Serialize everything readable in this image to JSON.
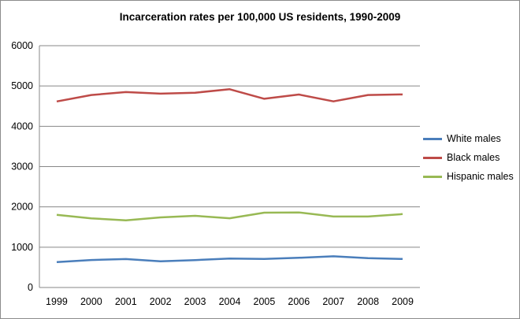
{
  "chart_data": {
    "type": "line",
    "title": "Incarceration rates per 100,000 US residents, 1990-2009",
    "xlabel": "",
    "ylabel": "",
    "x": [
      "1999",
      "2000",
      "2001",
      "2002",
      "2003",
      "2004",
      "2005",
      "2006",
      "2007",
      "2008",
      "2009"
    ],
    "ylim": [
      0,
      6000
    ],
    "yticks": [
      0,
      1000,
      2000,
      3000,
      4000,
      5000,
      6000
    ],
    "grid": true,
    "legend_position": "right",
    "series": [
      {
        "name": "White males",
        "color": "#4a7ebb",
        "values": [
          630,
          683,
          705,
          649,
          681,
          717,
          709,
          736,
          773,
          727,
          708
        ]
      },
      {
        "name": "Black males",
        "color": "#be4b48",
        "values": [
          4617,
          4777,
          4848,
          4810,
          4834,
          4919,
          4682,
          4789,
          4618,
          4777,
          4790
        ]
      },
      {
        "name": "Hispanic males",
        "color": "#98b954",
        "values": [
          1802,
          1715,
          1668,
          1740,
          1778,
          1717,
          1856,
          1862,
          1760,
          1760,
          1822
        ]
      }
    ]
  }
}
